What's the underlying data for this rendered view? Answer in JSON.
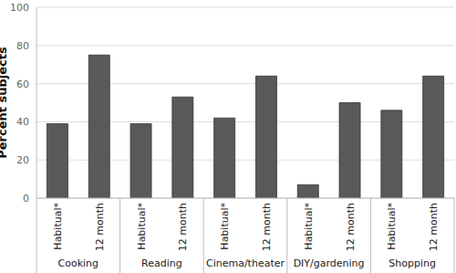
{
  "chart_data": {
    "type": "bar",
    "ylabel": "Percent subjects",
    "categories": [
      "Habitual*",
      "12 month",
      "Habitual*",
      "12 month",
      "Habitual*",
      "12 month",
      "Habitual*",
      "12 month",
      "Habitual*",
      "12 month"
    ],
    "groups": [
      "Cooking",
      "Reading",
      "Cinema/theater",
      "DIY/gardening",
      "Shopping"
    ],
    "values": [
      39,
      75,
      39,
      53,
      42,
      64,
      7,
      50,
      46,
      64
    ],
    "color": "#595959",
    "ylim": [
      0,
      100
    ],
    "yticks": [
      0,
      20,
      40,
      60,
      80,
      100
    ],
    "grid": true
  }
}
